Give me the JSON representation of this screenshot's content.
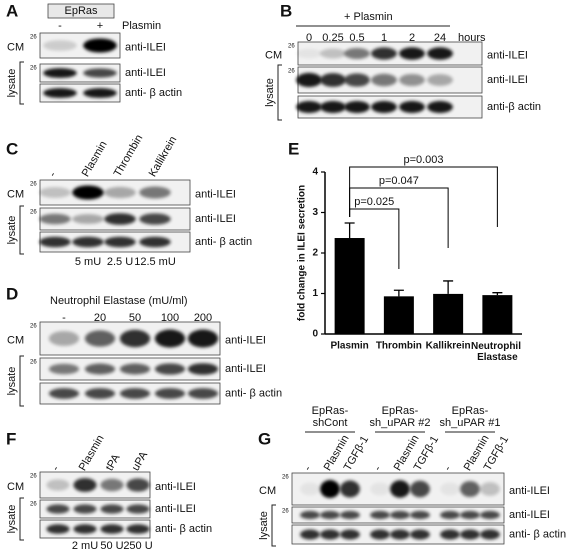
{
  "panels": {
    "a": {
      "label": "A",
      "group": "EpRas",
      "lanes": [
        "-",
        "+"
      ],
      "treatment": "Plasmin",
      "cm": "CM",
      "lysate": "lysate",
      "marker": "26",
      "rows": [
        "anti-ILEI",
        "anti-ILEI",
        "anti- β actin"
      ]
    },
    "b": {
      "label": "B",
      "treatment": "+ Plasmin",
      "lanes": [
        "0",
        "0.25",
        "0.5",
        "1",
        "2",
        "24"
      ],
      "unit": "hours",
      "cm": "CM",
      "lysate": "lysate",
      "marker": "26",
      "rows": [
        "anti-ILEI",
        "anti-ILEI",
        "anti-β actin"
      ]
    },
    "c": {
      "label": "C",
      "lanes": [
        "-",
        "Plasmin",
        "Thrombin",
        "Kallikrein"
      ],
      "doses": [
        "5 mU",
        "2.5 U",
        "12.5 mU"
      ],
      "cm": "CM",
      "lysate": "lysate",
      "marker": "26",
      "rows": [
        "anti-ILEI",
        "anti-ILEI",
        "anti- β actin"
      ]
    },
    "d": {
      "label": "D",
      "treatment": "Neutrophil Elastase (mU/ml)",
      "lanes": [
        "-",
        "20",
        "50",
        "100",
        "200"
      ],
      "cm": "CM",
      "lysate": "lysate",
      "marker": "26",
      "rows": [
        "anti-ILEI",
        "anti-ILEI",
        "anti- β actin"
      ]
    },
    "f": {
      "label": "F",
      "lanes": [
        "-",
        "Plasmin",
        "tPA",
        "uPA"
      ],
      "doses": [
        "2 mU",
        "50 U",
        "250 U"
      ],
      "cm": "CM",
      "lysate": "lysate",
      "marker": "26",
      "rows": [
        "anti-ILEI",
        "anti-ILEI",
        "anti- β actin"
      ]
    },
    "g": {
      "label": "G",
      "groups": [
        [
          "EpRas-",
          "shCont"
        ],
        [
          "EpRas-",
          "sh_uPAR #2"
        ],
        [
          "EpRas-",
          "sh_uPAR #1"
        ]
      ],
      "lanes": [
        "-",
        "Plasmin",
        "TGFβ-1",
        "-",
        "Plasmin",
        "TGFβ-1",
        "-",
        "Plasmin",
        "TGFβ-1"
      ],
      "cm": "CM",
      "lysate": "lysate",
      "marker": "26",
      "rows": [
        "anti-ILEI",
        "anti-ILEI",
        "anti- β actin"
      ]
    }
  },
  "chart_data": {
    "type": "bar",
    "panel_label": "E",
    "ylabel": "fold change in ILEI secretion",
    "categories": [
      "Plasmin",
      "Thrombin",
      "Kallikrein",
      "Neutrophil Elastase"
    ],
    "values": [
      2.37,
      0.93,
      0.99,
      0.96
    ],
    "errors": [
      0.37,
      0.15,
      0.32,
      0.06
    ],
    "color": "#000000",
    "ylim": [
      0,
      4
    ],
    "yticks": [
      0,
      1,
      2,
      3,
      4
    ],
    "annotations": [
      "p=0.003",
      "p=0.047",
      "p=0.025"
    ]
  }
}
